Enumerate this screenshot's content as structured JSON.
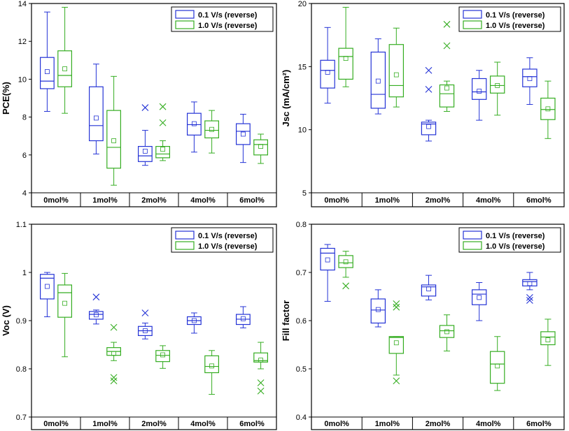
{
  "colors": {
    "series_a": "#2433d6",
    "series_b": "#35ad21",
    "axis": "#000000"
  },
  "chart_data": [
    {
      "type": "box",
      "ylabel": "PCE(%)",
      "ylim": [
        4,
        14
      ],
      "yticks": [
        4,
        6,
        8,
        10,
        12,
        14
      ],
      "categories": [
        "0mol%",
        "1mol%",
        "2mol%",
        "4mol%",
        "6mol%"
      ],
      "legend": [
        "0.1 V/s (reverse)",
        "1.0 V/s (reverse)"
      ],
      "series": [
        {
          "name": "0.1 V/s (reverse)",
          "boxes": [
            {
              "min": 8.3,
              "q1": 9.5,
              "median": 9.9,
              "q3": 11.15,
              "max": 13.55,
              "mean": 10.4,
              "outliers": []
            },
            {
              "min": 6.05,
              "q1": 6.75,
              "median": 7.55,
              "q3": 9.6,
              "max": 10.8,
              "mean": 7.95,
              "outliers": []
            },
            {
              "min": 5.45,
              "q1": 5.65,
              "median": 5.95,
              "q3": 6.45,
              "max": 7.3,
              "mean": 6.2,
              "outliers": [
                8.5
              ]
            },
            {
              "min": 6.15,
              "q1": 7.05,
              "median": 7.6,
              "q3": 8.2,
              "max": 8.8,
              "mean": 7.65,
              "outliers": []
            },
            {
              "min": 5.6,
              "q1": 6.55,
              "median": 7.25,
              "q3": 7.65,
              "max": 8.15,
              "mean": 7.1,
              "outliers": []
            }
          ]
        },
        {
          "name": "1.0 V/s (reverse)",
          "boxes": [
            {
              "min": 8.2,
              "q1": 9.6,
              "median": 10.2,
              "q3": 11.5,
              "max": 13.8,
              "mean": 10.55,
              "outliers": []
            },
            {
              "min": 4.4,
              "q1": 5.3,
              "median": 6.4,
              "q3": 8.35,
              "max": 10.15,
              "mean": 6.75,
              "outliers": []
            },
            {
              "min": 5.7,
              "q1": 5.85,
              "median": 6.05,
              "q3": 6.45,
              "max": 6.75,
              "mean": 6.3,
              "outliers": [
                8.55,
                7.7
              ]
            },
            {
              "min": 6.1,
              "q1": 6.9,
              "median": 7.3,
              "q3": 7.8,
              "max": 8.35,
              "mean": 7.35,
              "outliers": []
            },
            {
              "min": 5.55,
              "q1": 6.0,
              "median": 6.55,
              "q3": 6.8,
              "max": 7.1,
              "mean": 6.45,
              "outliers": []
            }
          ]
        }
      ]
    },
    {
      "type": "box",
      "ylabel": "Jsc (mA/cm²)",
      "ylim": [
        5,
        20
      ],
      "yticks": [
        5,
        10,
        15,
        20
      ],
      "categories": [
        "0mol%",
        "1mol%",
        "2mol%",
        "4mol%",
        "6mol%"
      ],
      "legend": [
        "0.1 V/s (reverse)",
        "1.0 V/s (reverse)"
      ],
      "series": [
        {
          "name": "0.1 V/s (reverse)",
          "boxes": [
            {
              "min": 12.1,
              "q1": 13.3,
              "median": 14.7,
              "q3": 15.5,
              "max": 18.1,
              "mean": 14.55,
              "outliers": []
            },
            {
              "min": 11.25,
              "q1": 11.7,
              "median": 12.8,
              "q3": 16.15,
              "max": 17.2,
              "mean": 13.85,
              "outliers": []
            },
            {
              "min": 9.1,
              "q1": 9.6,
              "median": 10.45,
              "q3": 10.6,
              "max": 10.75,
              "mean": 10.25,
              "outliers": [
                14.7,
                13.2
              ]
            },
            {
              "min": 10.75,
              "q1": 12.4,
              "median": 13.0,
              "q3": 14.05,
              "max": 14.7,
              "mean": 13.05,
              "outliers": []
            },
            {
              "min": 12.0,
              "q1": 13.4,
              "median": 14.2,
              "q3": 14.8,
              "max": 15.7,
              "mean": 14.05,
              "outliers": []
            }
          ]
        },
        {
          "name": "1.0 V/s (reverse)",
          "boxes": [
            {
              "min": 13.4,
              "q1": 14.0,
              "median": 15.8,
              "q3": 16.45,
              "max": 19.7,
              "mean": 15.65,
              "outliers": []
            },
            {
              "min": 11.8,
              "q1": 12.6,
              "median": 13.5,
              "q3": 16.75,
              "max": 18.05,
              "mean": 14.35,
              "outliers": []
            },
            {
              "min": 11.45,
              "q1": 11.8,
              "median": 12.85,
              "q3": 13.55,
              "max": 13.85,
              "mean": 13.3,
              "outliers": [
                18.35,
                16.65
              ]
            },
            {
              "min": 11.15,
              "q1": 12.9,
              "median": 13.5,
              "q3": 14.25,
              "max": 15.35,
              "mean": 13.5,
              "outliers": []
            },
            {
              "min": 9.3,
              "q1": 10.8,
              "median": 11.6,
              "q3": 12.5,
              "max": 13.85,
              "mean": 11.65,
              "outliers": []
            }
          ]
        }
      ]
    },
    {
      "type": "box",
      "ylabel": "Voc (V)",
      "ylim": [
        0.7,
        1.1
      ],
      "yticks": [
        0.7,
        0.8,
        0.9,
        1.0,
        1.1
      ],
      "categories": [
        "0mol%",
        "1mol%",
        "2mol%",
        "4mol%",
        "6mol%"
      ],
      "legend": [
        "0.1 V/s (reverse)",
        "1.0 V/s (reverse)"
      ],
      "series": [
        {
          "name": "0.1 V/s (reverse)",
          "boxes": [
            {
              "min": 0.908,
              "q1": 0.945,
              "median": 0.988,
              "q3": 0.996,
              "max": 1.0,
              "mean": 0.971,
              "outliers": []
            },
            {
              "min": 0.893,
              "q1": 0.903,
              "median": 0.913,
              "q3": 0.919,
              "max": 0.922,
              "mean": 0.912,
              "outliers": [
                0.949
              ]
            },
            {
              "min": 0.862,
              "q1": 0.869,
              "median": 0.879,
              "q3": 0.888,
              "max": 0.895,
              "mean": 0.879,
              "outliers": [
                0.916
              ]
            },
            {
              "min": 0.874,
              "q1": 0.892,
              "median": 0.9,
              "q3": 0.908,
              "max": 0.916,
              "mean": 0.9,
              "outliers": []
            },
            {
              "min": 0.885,
              "q1": 0.892,
              "median": 0.903,
              "q3": 0.913,
              "max": 0.929,
              "mean": 0.904,
              "outliers": []
            }
          ]
        },
        {
          "name": "1.0 V/s (reverse)",
          "boxes": [
            {
              "min": 0.825,
              "q1": 0.907,
              "median": 0.958,
              "q3": 0.974,
              "max": 0.998,
              "mean": 0.936,
              "outliers": []
            },
            {
              "min": 0.817,
              "q1": 0.828,
              "median": 0.836,
              "q3": 0.844,
              "max": 0.855,
              "mean": 0.832,
              "outliers": [
                0.886,
                0.782,
                0.775
              ]
            },
            {
              "min": 0.801,
              "q1": 0.815,
              "median": 0.828,
              "q3": 0.838,
              "max": 0.848,
              "mean": 0.829,
              "outliers": []
            },
            {
              "min": 0.747,
              "q1": 0.792,
              "median": 0.805,
              "q3": 0.827,
              "max": 0.838,
              "mean": 0.806,
              "outliers": []
            },
            {
              "min": 0.8,
              "q1": 0.814,
              "median": 0.817,
              "q3": 0.833,
              "max": 0.855,
              "mean": 0.818,
              "outliers": [
                0.771,
                0.754
              ]
            }
          ]
        }
      ]
    },
    {
      "type": "box",
      "ylabel": "Fill factor",
      "ylim": [
        0.4,
        0.8
      ],
      "yticks": [
        0.4,
        0.5,
        0.6,
        0.7,
        0.8
      ],
      "categories": [
        "0mol%",
        "1mol%",
        "2mol%",
        "4mol%",
        "6mol%"
      ],
      "legend": [
        "0.1 V/s (reverse)",
        "1.0 V/s (reverse)"
      ],
      "series": [
        {
          "name": "0.1 V/s (reverse)",
          "boxes": [
            {
              "min": 0.64,
              "q1": 0.705,
              "median": 0.74,
              "q3": 0.75,
              "max": 0.758,
              "mean": 0.726,
              "outliers": []
            },
            {
              "min": 0.587,
              "q1": 0.595,
              "median": 0.622,
              "q3": 0.645,
              "max": 0.664,
              "mean": 0.623,
              "outliers": []
            },
            {
              "min": 0.643,
              "q1": 0.651,
              "median": 0.67,
              "q3": 0.674,
              "max": 0.694,
              "mean": 0.666,
              "outliers": []
            },
            {
              "min": 0.6,
              "q1": 0.633,
              "median": 0.655,
              "q3": 0.664,
              "max": 0.679,
              "mean": 0.648,
              "outliers": []
            },
            {
              "min": 0.664,
              "q1": 0.672,
              "median": 0.681,
              "q3": 0.685,
              "max": 0.7,
              "mean": 0.677,
              "outliers": [
                0.648,
                0.642
              ]
            }
          ]
        },
        {
          "name": "1.0 V/s (reverse)",
          "boxes": [
            {
              "min": 0.69,
              "q1": 0.71,
              "median": 0.72,
              "q3": 0.735,
              "max": 0.744,
              "mean": 0.722,
              "outliers": [
                0.672
              ]
            },
            {
              "min": 0.487,
              "q1": 0.532,
              "median": 0.565,
              "q3": 0.567,
              "max": 0.567,
              "mean": 0.554,
              "outliers": [
                0.635,
                0.628,
                0.475
              ]
            },
            {
              "min": 0.537,
              "q1": 0.565,
              "median": 0.579,
              "q3": 0.59,
              "max": 0.612,
              "mean": 0.577,
              "outliers": []
            },
            {
              "min": 0.455,
              "q1": 0.47,
              "median": 0.51,
              "q3": 0.536,
              "max": 0.567,
              "mean": 0.506,
              "outliers": []
            },
            {
              "min": 0.507,
              "q1": 0.55,
              "median": 0.566,
              "q3": 0.577,
              "max": 0.603,
              "mean": 0.56,
              "outliers": []
            }
          ]
        }
      ]
    }
  ]
}
